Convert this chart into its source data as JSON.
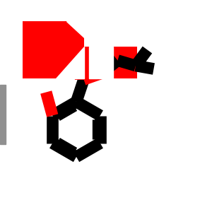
{
  "bg_color": "#ffffff",
  "black": "#000000",
  "red": "#ff0000",
  "gray": "#909090",
  "figsize": [
    3.0,
    3.0
  ],
  "dpi": 100,
  "lw": 12
}
